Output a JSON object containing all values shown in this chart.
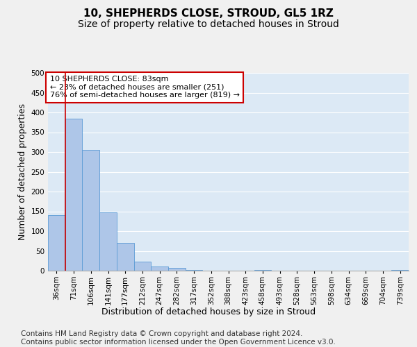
{
  "title": "10, SHEPHERDS CLOSE, STROUD, GL5 1RZ",
  "subtitle": "Size of property relative to detached houses in Stroud",
  "xlabel": "Distribution of detached houses by size in Stroud",
  "ylabel": "Number of detached properties",
  "bar_labels": [
    "36sqm",
    "71sqm",
    "106sqm",
    "141sqm",
    "177sqm",
    "212sqm",
    "247sqm",
    "282sqm",
    "317sqm",
    "352sqm",
    "388sqm",
    "423sqm",
    "458sqm",
    "493sqm",
    "528sqm",
    "563sqm",
    "598sqm",
    "634sqm",
    "669sqm",
    "704sqm",
    "739sqm"
  ],
  "bar_values": [
    140,
    385,
    305,
    148,
    70,
    22,
    10,
    7,
    2,
    0,
    0,
    0,
    2,
    0,
    0,
    0,
    0,
    0,
    0,
    0,
    2
  ],
  "bar_color": "#aec6e8",
  "bar_edge_color": "#5b9bd5",
  "redline_color": "#cc0000",
  "annotation_text": "10 SHEPHERDS CLOSE: 83sqm\n← 23% of detached houses are smaller (251)\n76% of semi-detached houses are larger (819) →",
  "annotation_box_color": "#ffffff",
  "annotation_box_edge_color": "#cc0000",
  "ylim": [
    0,
    500
  ],
  "yticks": [
    0,
    50,
    100,
    150,
    200,
    250,
    300,
    350,
    400,
    450,
    500
  ],
  "background_color": "#dce9f5",
  "grid_color": "#ffffff",
  "fig_background": "#f0f0f0",
  "footer_text": "Contains HM Land Registry data © Crown copyright and database right 2024.\nContains public sector information licensed under the Open Government Licence v3.0.",
  "title_fontsize": 11,
  "subtitle_fontsize": 10,
  "xlabel_fontsize": 9,
  "ylabel_fontsize": 9,
  "tick_fontsize": 7.5,
  "annotation_fontsize": 8,
  "footer_fontsize": 7.5
}
